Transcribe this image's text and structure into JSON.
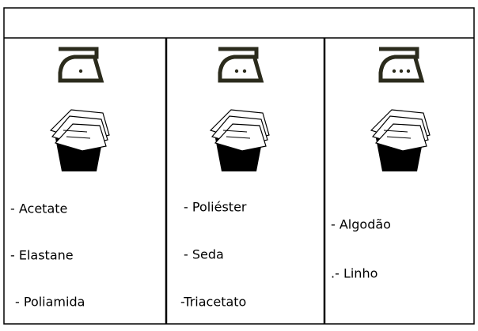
{
  "table": {
    "columns": [
      {
        "items": [
          "- Acetate",
          "- Elastane",
          "- Poliamida"
        ]
      },
      {
        "items": [
          "- Poliéster",
          "- Seda",
          "-Triacetato"
        ]
      },
      {
        "items": [
          "- Algodão",
          ".- Linho"
        ]
      }
    ]
  }
}
